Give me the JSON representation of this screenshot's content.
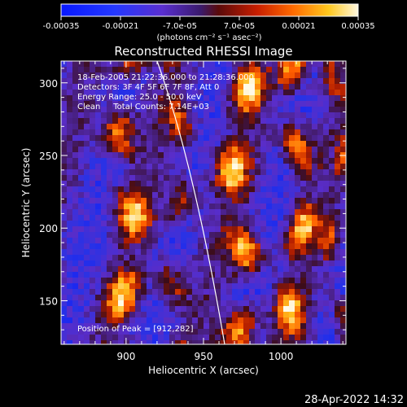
{
  "chart_data": {
    "type": "heatmap",
    "title": "Reconstructed RHESSI Image",
    "xlabel": "Heliocentric X (arcsec)",
    "ylabel": "Heliocentric Y (arcsec)",
    "x_ticks": [
      900,
      950,
      1000
    ],
    "y_ticks": [
      150,
      200,
      250,
      300
    ],
    "xlim": [
      858,
      1042
    ],
    "ylim": [
      120,
      315
    ],
    "colorbar": {
      "ticks": [
        "-0.00035",
        "-0.00021",
        "-7.0e-05",
        "7.0e-05",
        "0.00021",
        "0.00035"
      ],
      "range": [
        -0.00035,
        0.00035
      ],
      "unit_label": "(photons cm⁻² s⁻¹ asec⁻²)",
      "colormap": "blue-purple-red-orange-yellow-white"
    },
    "annotations": [
      "18-Feb-2005 21:22:36.000 to 21:28:36.000",
      "Detectors: 3F 4F 5F 6F 7F 8F, Att 0",
      "Energy Range: 25.0 - 50.0 keV",
      "Clean     Total Counts: 7.14E+03",
      "Position of Peak = [912,282]"
    ],
    "limb": "solar limb curve"
  },
  "footer": {
    "timestamp": "28-Apr-2022 14:32"
  }
}
